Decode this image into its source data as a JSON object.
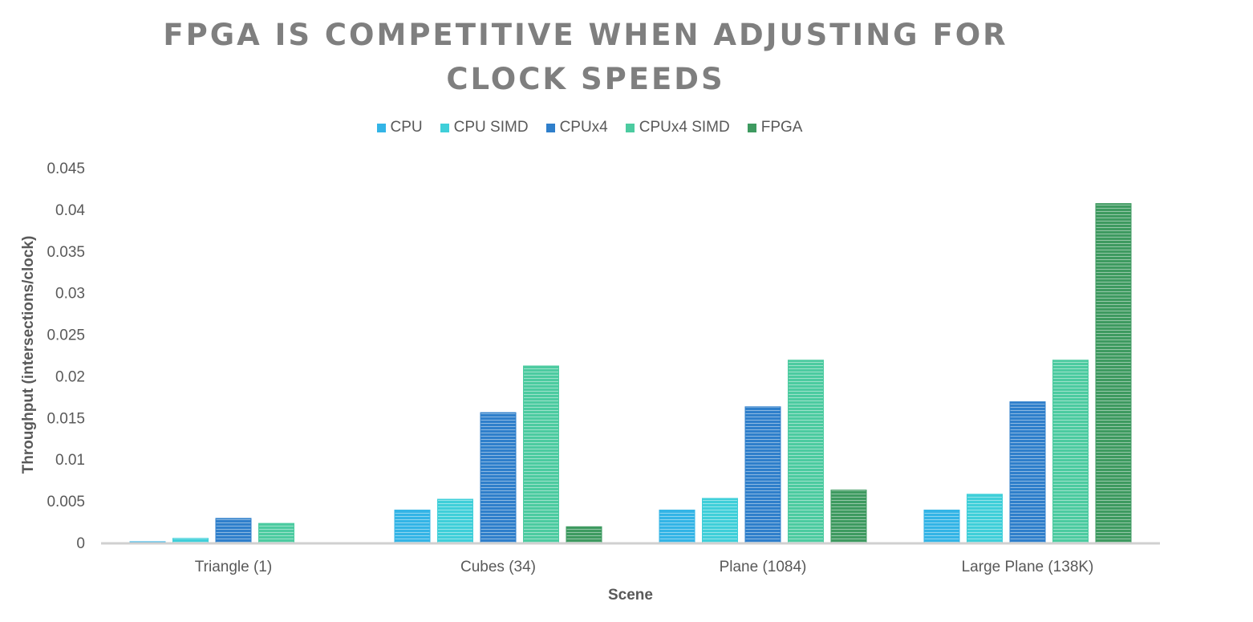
{
  "chart_data": {
    "type": "bar",
    "title": "FPGA IS COMPETITIVE WHEN ADJUSTING FOR CLOCK SPEEDS",
    "xlabel": "Scene",
    "ylabel": "Throughput (intersections/clock)",
    "categories": [
      "Triangle (1)",
      "Cubes (34)",
      "Plane (1084)",
      "Large Plane (138K)"
    ],
    "ylim": [
      0,
      0.045
    ],
    "yticks": [
      "0",
      "0.005",
      "0.01",
      "0.015",
      "0.02",
      "0.025",
      "0.03",
      "0.035",
      "0.04",
      "0.045"
    ],
    "legend_position": "top",
    "grid": false,
    "series": [
      {
        "name": "CPU",
        "color": "#33b4e6",
        "values": [
          0.0001,
          0.0039,
          0.0039,
          0.0039
        ]
      },
      {
        "name": "CPU SIMD",
        "color": "#3fcfd9",
        "values": [
          0.0005,
          0.0052,
          0.0053,
          0.0058
        ]
      },
      {
        "name": "CPUx4",
        "color": "#2f7fcb",
        "values": [
          0.0029,
          0.0156,
          0.0163,
          0.0169
        ]
      },
      {
        "name": "CPUx4 SIMD",
        "color": "#4ccba0",
        "values": [
          0.0023,
          0.0212,
          0.0219,
          0.0219
        ]
      },
      {
        "name": "FPGA",
        "color": "#3e9a60",
        "values": [
          0,
          0.0019,
          0.0063,
          0.0407
        ]
      }
    ]
  }
}
